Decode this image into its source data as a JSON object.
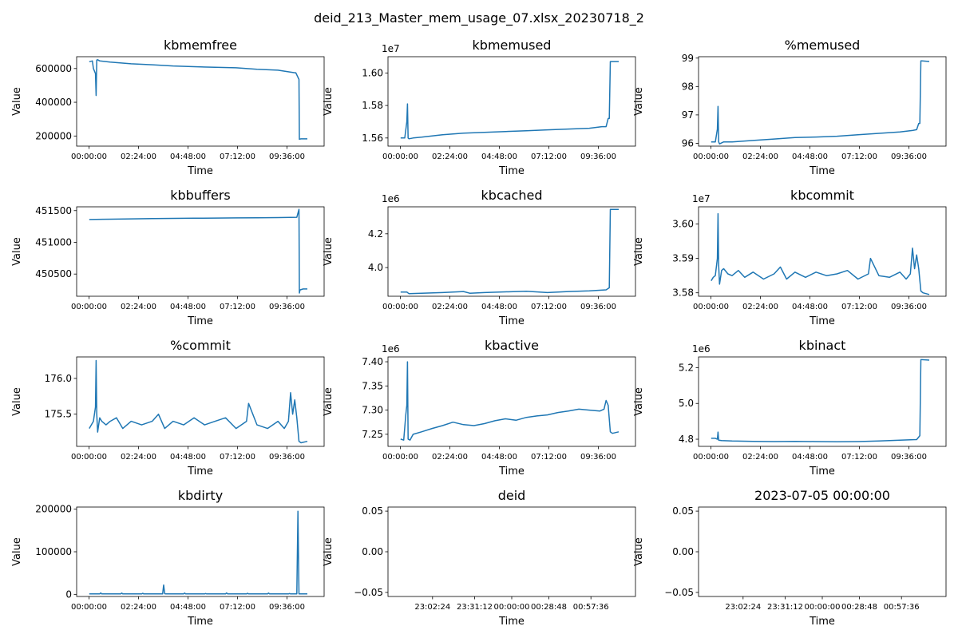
{
  "figure": {
    "suptitle": "deid_213_Master_mem_usage_07.xlsx_20230718_2",
    "line_color": "#1f77b4"
  },
  "chart_data": [
    {
      "type": "line",
      "title": "kbmemfree",
      "xlabel": "Time",
      "ylabel": "Value",
      "grid": false,
      "xticks": [
        "00:00:00",
        "02:24:00",
        "04:48:00",
        "07:12:00",
        "09:36:00"
      ],
      "xrange": [
        -0.6,
        11.2
      ],
      "ylim": [
        140000,
        670000
      ],
      "yticks": [
        {
          "v": 200000,
          "label": "200000"
        },
        {
          "v": 400000,
          "label": "400000"
        },
        {
          "v": 600000,
          "label": "600000"
        }
      ],
      "x": [
        0.0,
        0.15,
        0.2,
        0.3,
        0.33,
        0.36,
        0.4,
        0.5,
        1.0,
        2.0,
        3.0,
        4.0,
        5.0,
        6.0,
        7.0,
        8.0,
        9.0,
        9.8,
        9.85,
        10.0,
        10.02,
        10.05,
        10.1,
        10.4
      ],
      "y": [
        640000,
        645000,
        600000,
        570000,
        440000,
        650000,
        652000,
        645000,
        638000,
        628000,
        622000,
        615000,
        611000,
        607000,
        604000,
        595000,
        590000,
        575000,
        575000,
        535000,
        180000,
        182000,
        183000,
        183000
      ]
    },
    {
      "type": "line",
      "title": "kbmemused",
      "xlabel": "Time",
      "ylabel": "Value",
      "grid": false,
      "offset": "1e7",
      "scale": 10000000,
      "xticks": [
        "00:00:00",
        "02:24:00",
        "04:48:00",
        "07:12:00",
        "09:36:00"
      ],
      "xrange": [
        -0.6,
        11.2
      ],
      "ylim": [
        15550000,
        16100000
      ],
      "yticks": [
        {
          "v": 15600000,
          "label": "1.56"
        },
        {
          "v": 15800000,
          "label": "1.58"
        },
        {
          "v": 16000000,
          "label": "1.60"
        }
      ],
      "x": [
        0.0,
        0.2,
        0.3,
        0.33,
        0.36,
        0.4,
        0.6,
        1.0,
        2.0,
        3.0,
        4.0,
        5.0,
        6.0,
        7.0,
        8.0,
        9.0,
        9.6,
        9.8,
        9.9,
        9.95,
        10.0,
        10.05,
        10.4
      ],
      "y": [
        15600000,
        15600000,
        15700000,
        15810000,
        15600000,
        15595000,
        15600000,
        15605000,
        15620000,
        15630000,
        15635000,
        15640000,
        15645000,
        15650000,
        15655000,
        15660000,
        15670000,
        15670000,
        15720000,
        15720000,
        16070000,
        16070000,
        16070000
      ]
    },
    {
      "type": "line",
      "title": "%memused",
      "xlabel": "Time",
      "ylabel": "Value",
      "grid": false,
      "xticks": [
        "00:00:00",
        "02:24:00",
        "04:48:00",
        "07:12:00",
        "09:36:00"
      ],
      "xrange": [
        -0.6,
        11.2
      ],
      "ylim": [
        95.9,
        99.05
      ],
      "yticks": [
        {
          "v": 96,
          "label": "96"
        },
        {
          "v": 97,
          "label": "97"
        },
        {
          "v": 98,
          "label": "98"
        },
        {
          "v": 99,
          "label": "99"
        }
      ],
      "x": [
        0.0,
        0.2,
        0.3,
        0.33,
        0.36,
        0.4,
        0.6,
        1.0,
        2.0,
        3.0,
        4.0,
        5.0,
        6.0,
        7.0,
        8.0,
        9.0,
        9.6,
        9.8,
        9.9,
        9.95,
        10.0,
        10.05,
        10.4
      ],
      "y": [
        96.05,
        96.05,
        96.5,
        97.3,
        96.05,
        95.98,
        96.05,
        96.05,
        96.1,
        96.15,
        96.2,
        96.22,
        96.25,
        96.3,
        96.35,
        96.4,
        96.45,
        96.48,
        96.7,
        96.7,
        98.9,
        98.9,
        98.88
      ]
    },
    {
      "type": "line",
      "title": "kbbuffers",
      "xlabel": "Time",
      "ylabel": "Value",
      "grid": false,
      "xticks": [
        "00:00:00",
        "02:24:00",
        "04:48:00",
        "07:12:00",
        "09:36:00"
      ],
      "xrange": [
        -0.6,
        11.2
      ],
      "ylim": [
        450150,
        451560
      ],
      "yticks": [
        {
          "v": 450500,
          "label": "450500"
        },
        {
          "v": 451000,
          "label": "451000"
        },
        {
          "v": 451500,
          "label": "451500"
        }
      ],
      "x": [
        0.0,
        1.0,
        2.0,
        3.0,
        4.0,
        5.0,
        6.0,
        7.0,
        8.0,
        9.0,
        9.9,
        10.0,
        10.02,
        10.05,
        10.2,
        10.4
      ],
      "y": [
        451360,
        451365,
        451370,
        451375,
        451378,
        451380,
        451382,
        451385,
        451388,
        451390,
        451395,
        451520,
        450200,
        450250,
        450265,
        450265
      ]
    },
    {
      "type": "line",
      "title": "kbcached",
      "xlabel": "Time",
      "ylabel": "Value",
      "grid": false,
      "offset": "1e6",
      "scale": 1000000,
      "xticks": [
        "00:00:00",
        "02:24:00",
        "04:48:00",
        "07:12:00",
        "09:36:00"
      ],
      "xrange": [
        -0.6,
        11.2
      ],
      "ylim": [
        3830000,
        4360000
      ],
      "yticks": [
        {
          "v": 4000000,
          "label": "4.0"
        },
        {
          "v": 4200000,
          "label": "4.2"
        }
      ],
      "x": [
        0.0,
        0.3,
        0.4,
        1.0,
        2.0,
        3.0,
        3.3,
        4.0,
        5.0,
        6.0,
        7.0,
        8.0,
        9.0,
        9.8,
        9.95,
        10.0,
        10.05,
        10.4
      ],
      "y": [
        3855000,
        3855000,
        3845000,
        3848000,
        3852000,
        3858000,
        3848000,
        3852000,
        3856000,
        3860000,
        3852000,
        3858000,
        3862000,
        3868000,
        3880000,
        4345000,
        4345000,
        4345000
      ]
    },
    {
      "type": "line",
      "title": "kbcommit",
      "xlabel": "Time",
      "ylabel": "Value",
      "grid": false,
      "offset": "1e7",
      "scale": 10000000,
      "xticks": [
        "00:00:00",
        "02:24:00",
        "04:48:00",
        "07:12:00",
        "09:36:00"
      ],
      "xrange": [
        -0.6,
        11.2
      ],
      "ylim": [
        35790000,
        36050000
      ],
      "yticks": [
        {
          "v": 35800000,
          "label": "3.58"
        },
        {
          "v": 35900000,
          "label": "3.59"
        },
        {
          "v": 36000000,
          "label": "3.60"
        }
      ],
      "x": [
        0.0,
        0.1,
        0.2,
        0.3,
        0.33,
        0.36,
        0.4,
        0.5,
        0.6,
        0.8,
        1.0,
        1.3,
        1.6,
        2.0,
        2.5,
        3.0,
        3.3,
        3.6,
        4.0,
        4.5,
        5.0,
        5.5,
        6.0,
        6.5,
        7.0,
        7.5,
        7.6,
        8.0,
        8.5,
        9.0,
        9.3,
        9.5,
        9.6,
        9.7,
        9.8,
        9.9,
        10.0,
        10.1,
        10.4
      ],
      "y": [
        35835000,
        35845000,
        35850000,
        35900000,
        36030000,
        35880000,
        35825000,
        35865000,
        35870000,
        35855000,
        35850000,
        35865000,
        35845000,
        35860000,
        35840000,
        35855000,
        35875000,
        35840000,
        35860000,
        35845000,
        35860000,
        35850000,
        35855000,
        35865000,
        35840000,
        35855000,
        35900000,
        35850000,
        35845000,
        35860000,
        35840000,
        35855000,
        35930000,
        35870000,
        35910000,
        35870000,
        35805000,
        35800000,
        35795000
      ]
    },
    {
      "type": "line",
      "title": "%commit",
      "xlabel": "Time",
      "ylabel": "Value",
      "grid": false,
      "xticks": [
        "00:00:00",
        "02:24:00",
        "04:48:00",
        "07:12:00",
        "09:36:00"
      ],
      "xrange": [
        -0.6,
        11.2
      ],
      "ylim": [
        175.05,
        176.3
      ],
      "yticks": [
        {
          "v": 175.5,
          "label": "175.5"
        },
        {
          "v": 176,
          "label": "176.0"
        }
      ],
      "x": [
        0.0,
        0.1,
        0.2,
        0.3,
        0.33,
        0.36,
        0.4,
        0.5,
        0.6,
        0.8,
        1.0,
        1.3,
        1.6,
        2.0,
        2.5,
        3.0,
        3.3,
        3.6,
        4.0,
        4.5,
        5.0,
        5.5,
        6.0,
        6.5,
        7.0,
        7.5,
        7.6,
        8.0,
        8.5,
        9.0,
        9.3,
        9.5,
        9.6,
        9.7,
        9.8,
        9.9,
        10.0,
        10.1,
        10.4
      ],
      "y": [
        175.3,
        175.35,
        175.4,
        175.6,
        176.25,
        175.5,
        175.25,
        175.45,
        175.4,
        175.35,
        175.4,
        175.45,
        175.3,
        175.4,
        175.35,
        175.4,
        175.5,
        175.3,
        175.4,
        175.35,
        175.45,
        175.35,
        175.4,
        175.45,
        175.3,
        175.4,
        175.65,
        175.35,
        175.3,
        175.4,
        175.3,
        175.4,
        175.8,
        175.5,
        175.7,
        175.45,
        175.12,
        175.1,
        175.12
      ]
    },
    {
      "type": "line",
      "title": "kbactive",
      "xlabel": "Time",
      "ylabel": "Value",
      "grid": false,
      "offset": "1e6",
      "scale": 1000000,
      "xticks": [
        "00:00:00",
        "02:24:00",
        "04:48:00",
        "07:12:00",
        "09:36:00"
      ],
      "xrange": [
        -0.6,
        11.2
      ],
      "ylim": [
        7225000,
        7410000
      ],
      "yticks": [
        {
          "v": 7250000,
          "label": "7.25"
        },
        {
          "v": 7300000,
          "label": "7.30"
        },
        {
          "v": 7350000,
          "label": "7.35"
        },
        {
          "v": 7400000,
          "label": "7.40"
        }
      ],
      "x": [
        0.0,
        0.15,
        0.25,
        0.3,
        0.33,
        0.36,
        0.45,
        0.6,
        1.0,
        1.5,
        2.0,
        2.5,
        3.0,
        3.5,
        4.0,
        4.5,
        5.0,
        5.5,
        6.0,
        6.5,
        7.0,
        7.5,
        8.0,
        8.5,
        9.0,
        9.5,
        9.7,
        9.8,
        9.9,
        10.0,
        10.1,
        10.4
      ],
      "y": [
        7240000,
        7238000,
        7290000,
        7310000,
        7400000,
        7240000,
        7238000,
        7250000,
        7255000,
        7262000,
        7268000,
        7275000,
        7270000,
        7268000,
        7272000,
        7278000,
        7282000,
        7279000,
        7285000,
        7288000,
        7290000,
        7295000,
        7298000,
        7302000,
        7300000,
        7298000,
        7302000,
        7320000,
        7310000,
        7255000,
        7252000,
        7255000
      ]
    },
    {
      "type": "line",
      "title": "kbinact",
      "xlabel": "Time",
      "ylabel": "Value",
      "grid": false,
      "offset": "1e6",
      "scale": 1000000,
      "xticks": [
        "00:00:00",
        "02:24:00",
        "04:48:00",
        "07:12:00",
        "09:36:00"
      ],
      "xrange": [
        -0.6,
        11.2
      ],
      "ylim": [
        4760000,
        5260000
      ],
      "yticks": [
        {
          "v": 4800000,
          "label": "4.8"
        },
        {
          "v": 5000000,
          "label": "5.0"
        },
        {
          "v": 5200000,
          "label": "5.2"
        }
      ],
      "x": [
        0.0,
        0.2,
        0.3,
        0.33,
        0.36,
        0.5,
        1.0,
        2.0,
        3.0,
        4.0,
        5.0,
        6.0,
        7.0,
        8.0,
        9.0,
        9.8,
        9.95,
        10.0,
        10.05,
        10.4
      ],
      "y": [
        4805000,
        4805000,
        4800000,
        4840000,
        4795000,
        4792000,
        4790000,
        4788000,
        4787000,
        4788000,
        4787000,
        4786000,
        4787000,
        4790000,
        4795000,
        4798000,
        4820000,
        5245000,
        5245000,
        5242000
      ]
    },
    {
      "type": "line",
      "title": "kbdirty",
      "xlabel": "Time",
      "ylabel": "Value",
      "grid": false,
      "xticks": [
        "00:00:00",
        "02:24:00",
        "04:48:00",
        "07:12:00",
        "09:36:00"
      ],
      "xrange": [
        -0.6,
        11.2
      ],
      "ylim": [
        -5000,
        205000
      ],
      "yticks": [
        {
          "v": 0,
          "label": "0"
        },
        {
          "v": 100000,
          "label": "100000"
        },
        {
          "v": 200000,
          "label": "200000"
        }
      ],
      "x": [
        0.0,
        0.5,
        0.55,
        0.6,
        1.0,
        1.5,
        1.55,
        1.6,
        2.0,
        2.5,
        2.55,
        2.6,
        3.0,
        3.5,
        3.55,
        3.6,
        3.65,
        3.7,
        4.0,
        4.5,
        4.55,
        4.6,
        5.0,
        5.5,
        5.55,
        5.6,
        6.0,
        6.5,
        6.55,
        6.6,
        7.0,
        7.5,
        7.55,
        7.6,
        8.0,
        8.5,
        8.55,
        8.6,
        9.0,
        9.5,
        9.55,
        9.6,
        9.9,
        9.95,
        10.0,
        10.05,
        10.4
      ],
      "y": [
        1000,
        1000,
        3500,
        1000,
        1000,
        1000,
        3000,
        1000,
        1000,
        1000,
        2500,
        1000,
        1000,
        1000,
        22000,
        1500,
        1000,
        1000,
        1000,
        1000,
        3000,
        1000,
        1000,
        1000,
        2000,
        1000,
        1000,
        1000,
        3500,
        1000,
        1000,
        1000,
        2500,
        1000,
        1000,
        1000,
        3000,
        1000,
        1000,
        1000,
        2000,
        1000,
        1000,
        195000,
        1000,
        1000,
        1000
      ]
    },
    {
      "type": "line",
      "title": "deid",
      "xlabel": "Time",
      "ylabel": "Value",
      "grid": false,
      "xticks": [
        "23:02:24",
        "23:31:12",
        "00:00:00",
        "00:28:48",
        "00:57:36"
      ],
      "xrange": [
        -1.2,
        2.2
      ],
      "ylim": [
        -0.055,
        0.055
      ],
      "yticks": [
        {
          "v": -0.05,
          "label": "−0.05"
        },
        {
          "v": 0,
          "label": "0.00"
        },
        {
          "v": 0.05,
          "label": "0.05"
        }
      ],
      "x": [],
      "y": []
    },
    {
      "type": "line",
      "title": "2023-07-05 00:00:00",
      "xlabel": "Time",
      "ylabel": "Value",
      "grid": false,
      "xticks": [
        "23:02:24",
        "23:31:12",
        "00:00:00",
        "00:28:48",
        "00:57:36"
      ],
      "xrange": [
        -1.2,
        2.2
      ],
      "ylim": [
        -0.055,
        0.055
      ],
      "yticks": [
        {
          "v": -0.05,
          "label": "−0.05"
        },
        {
          "v": 0,
          "label": "0.00"
        },
        {
          "v": 0.05,
          "label": "0.05"
        }
      ],
      "x": [],
      "y": []
    }
  ]
}
